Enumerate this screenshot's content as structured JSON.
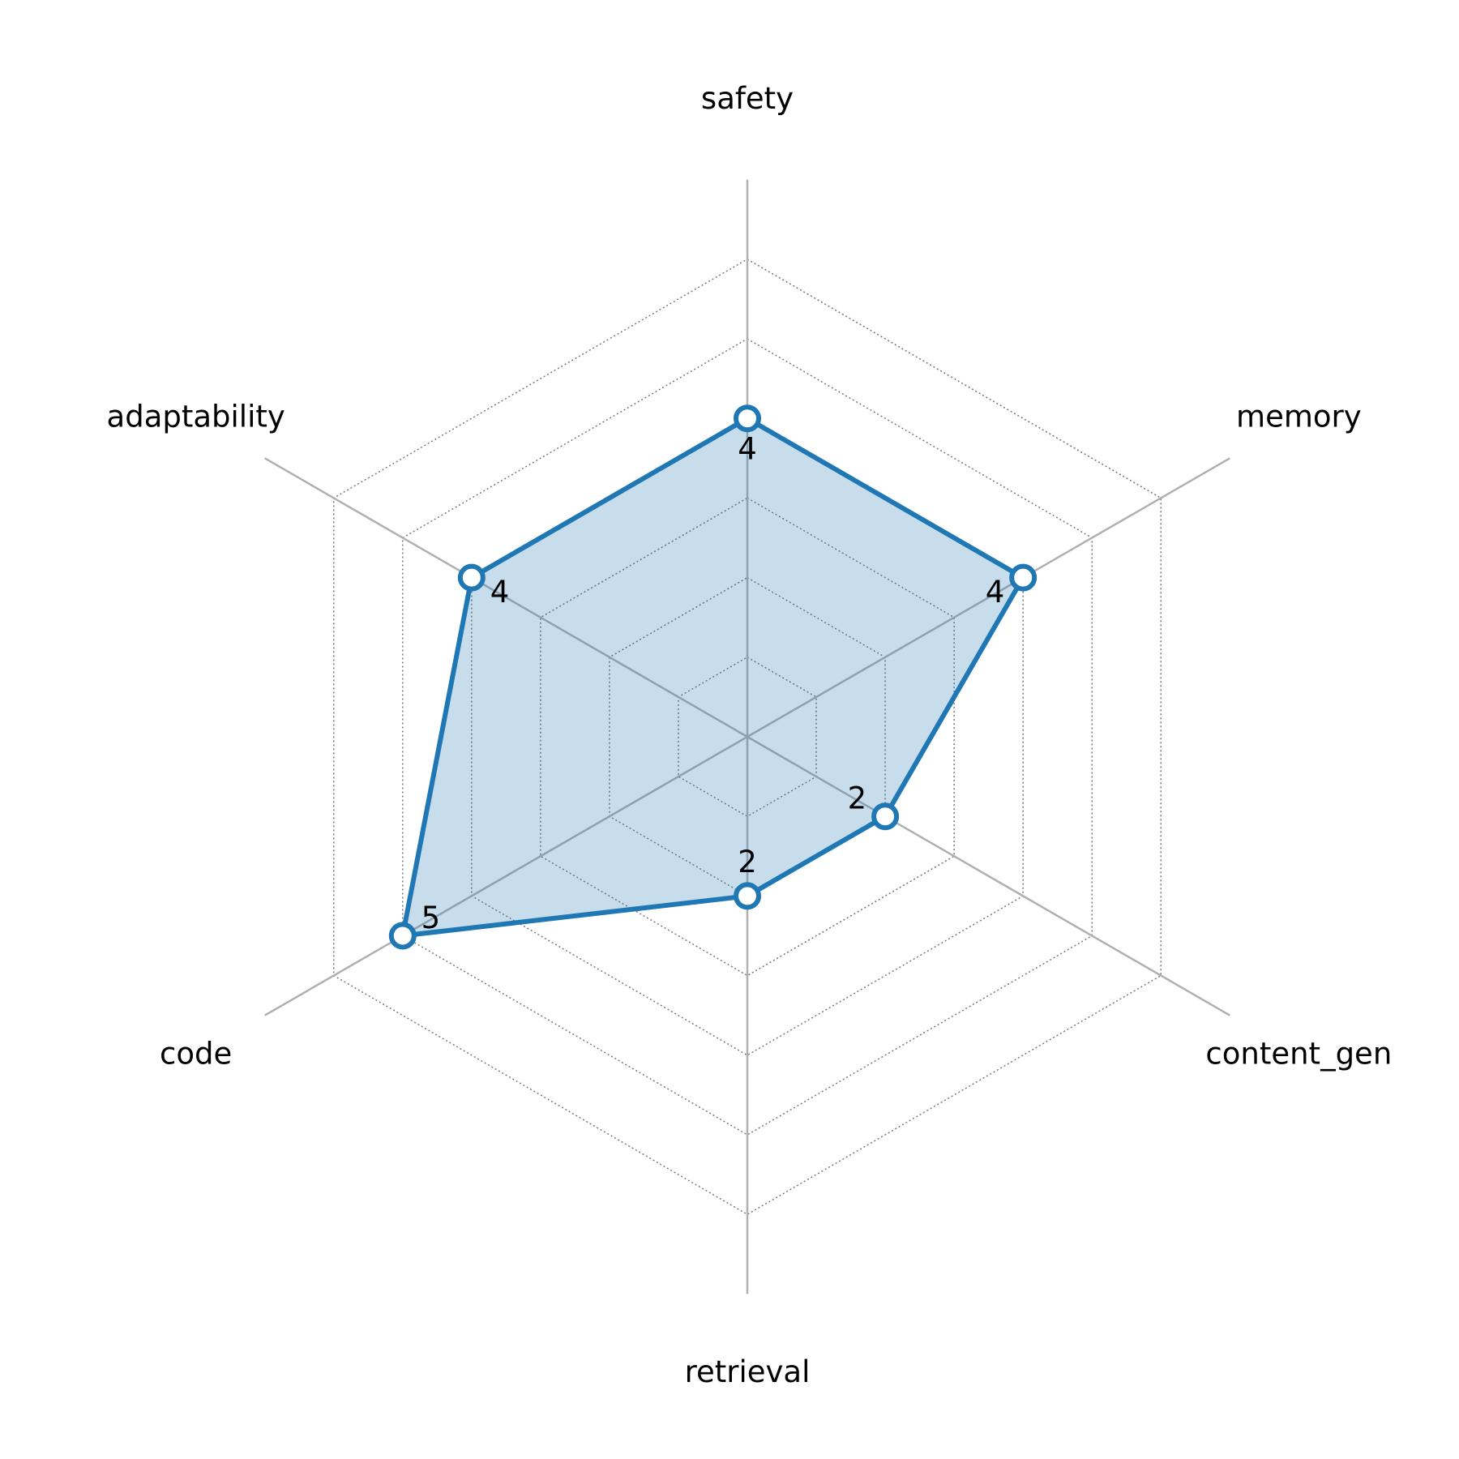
{
  "chart_data": {
    "type": "radar",
    "categories": [
      "safety",
      "memory",
      "content_gen",
      "retrieval",
      "code",
      "adaptability"
    ],
    "series": [
      {
        "color": "#1f77b4",
        "values": [
          4,
          4,
          2,
          2,
          5,
          4
        ]
      }
    ],
    "rlim": [
      0,
      7
    ],
    "rticks": [
      1,
      2,
      3,
      4,
      5,
      6
    ],
    "grid": true
  }
}
